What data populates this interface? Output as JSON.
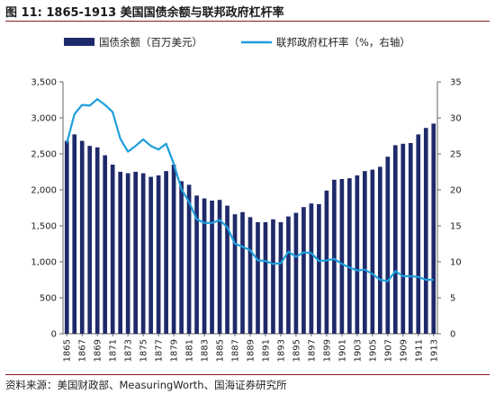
{
  "figure": {
    "label": "图 11:",
    "title": "1865-1913 美国国债余额与联邦政府杠杆率",
    "source": "资料来源：美国财政部、MeasuringWorth、国海证券研究所",
    "accent_color": "#8c1c1c"
  },
  "chart_data": {
    "type": "bar+line",
    "x": [
      1865,
      1866,
      1867,
      1868,
      1869,
      1870,
      1871,
      1872,
      1873,
      1874,
      1875,
      1876,
      1877,
      1878,
      1879,
      1880,
      1881,
      1882,
      1883,
      1884,
      1885,
      1886,
      1887,
      1888,
      1889,
      1890,
      1891,
      1892,
      1893,
      1894,
      1895,
      1896,
      1897,
      1898,
      1899,
      1900,
      1901,
      1902,
      1903,
      1904,
      1905,
      1906,
      1907,
      1908,
      1909,
      1910,
      1911,
      1912,
      1913
    ],
    "x_tick_labels": [
      "1865",
      "1867",
      "1869",
      "1871",
      "1873",
      "1875",
      "1877",
      "1879",
      "1881",
      "1883",
      "1885",
      "1887",
      "1889",
      "1891",
      "1893",
      "1895",
      "1897",
      "1899",
      "1901",
      "1903",
      "1905",
      "1907",
      "1909",
      "1911",
      "1913"
    ],
    "series": [
      {
        "name": "国债余额（百万美元）",
        "type": "bar",
        "axis": "left",
        "color": "#1f2a6b",
        "values": [
          2680,
          2770,
          2680,
          2610,
          2590,
          2480,
          2350,
          2250,
          2230,
          2250,
          2230,
          2180,
          2200,
          2260,
          2350,
          2120,
          2070,
          1920,
          1880,
          1850,
          1860,
          1780,
          1660,
          1690,
          1620,
          1550,
          1550,
          1590,
          1550,
          1630,
          1680,
          1760,
          1810,
          1800,
          1990,
          2140,
          2150,
          2160,
          2200,
          2260,
          2280,
          2320,
          2460,
          2620,
          2640,
          2650,
          2770,
          2860,
          2920
        ]
      },
      {
        "name": "联邦政府杠杆率（%，右轴）",
        "type": "line",
        "axis": "right",
        "color": "#1e9fdc",
        "values": [
          26.5,
          30.5,
          31.8,
          31.7,
          32.6,
          31.8,
          30.8,
          27.1,
          25.3,
          26.1,
          27.0,
          26.1,
          25.6,
          26.4,
          23.6,
          20.1,
          18.3,
          15.9,
          15.4,
          15.4,
          15.8,
          14.8,
          12.5,
          12.1,
          11.6,
          10.2,
          10.1,
          9.7,
          9.8,
          11.4,
          10.7,
          11.3,
          11.2,
          10.1,
          10.2,
          10.4,
          9.7,
          9.2,
          8.8,
          8.9,
          8.3,
          7.5,
          7.3,
          8.7,
          8.0,
          8.0,
          7.9,
          7.5,
          7.5
        ]
      }
    ],
    "y_left": {
      "min": 0,
      "max": 3500,
      "ticks": [
        "0",
        "500",
        "1,000",
        "1,500",
        "2,000",
        "2,500",
        "3,000",
        "3,500"
      ]
    },
    "y_right": {
      "min": 0,
      "max": 35,
      "ticks": [
        "0",
        "5",
        "10",
        "15",
        "20",
        "25",
        "30",
        "35"
      ]
    },
    "legend": {
      "position": "top"
    },
    "grid": false
  }
}
